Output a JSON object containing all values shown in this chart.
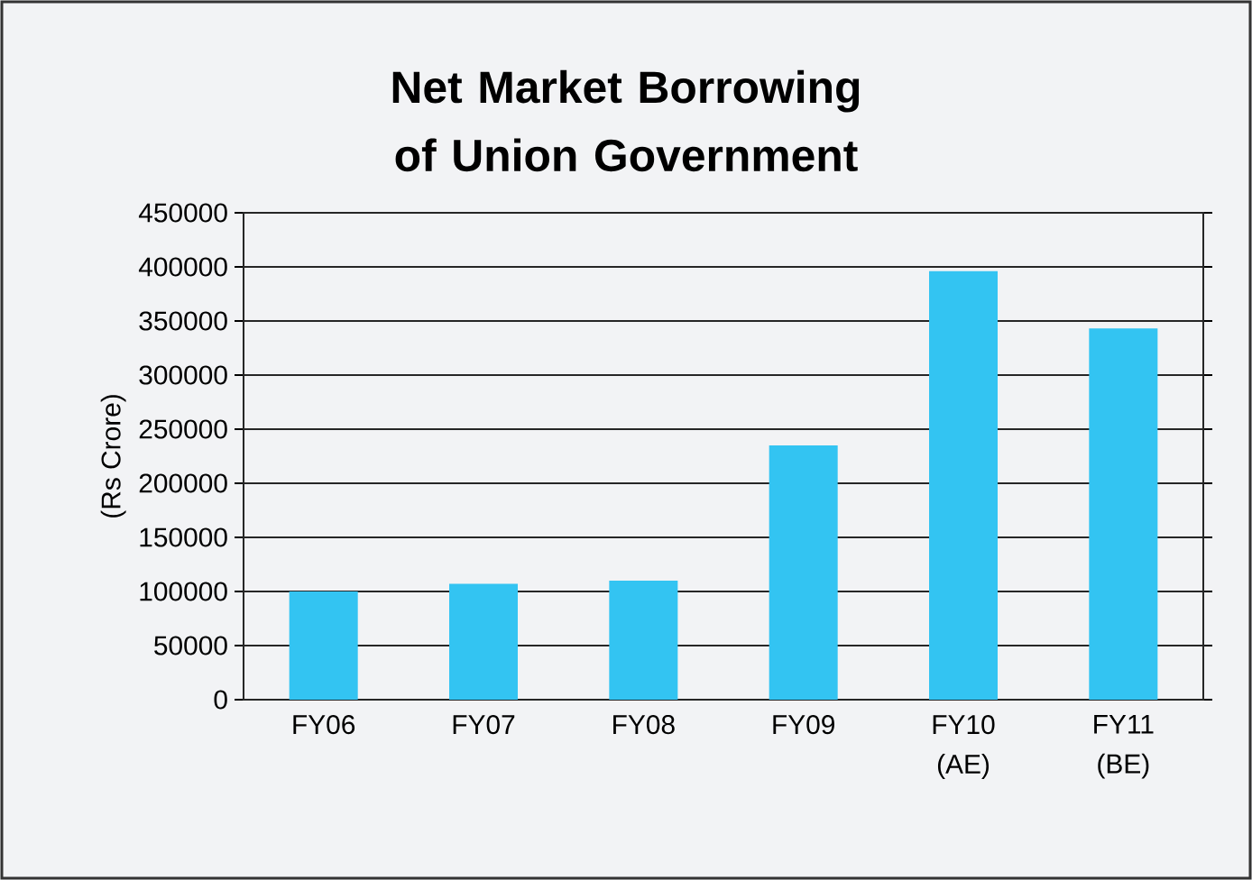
{
  "chart_data": {
    "type": "bar",
    "title": "Net Market Borrowing of Union Government",
    "ylabel": "(Rs Crore)",
    "categories": [
      "FY06",
      "FY07",
      "FY08",
      "FY09",
      "FY10 (AE)",
      "FY11 (BE)"
    ],
    "values": [
      100000,
      107000,
      110000,
      235000,
      396000,
      343000
    ],
    "color": "#33c4f2",
    "ylim": [
      0,
      450000
    ],
    "yticks": [
      0,
      50000,
      100000,
      150000,
      200000,
      250000,
      300000,
      350000,
      400000,
      450000
    ],
    "grid": "y"
  }
}
